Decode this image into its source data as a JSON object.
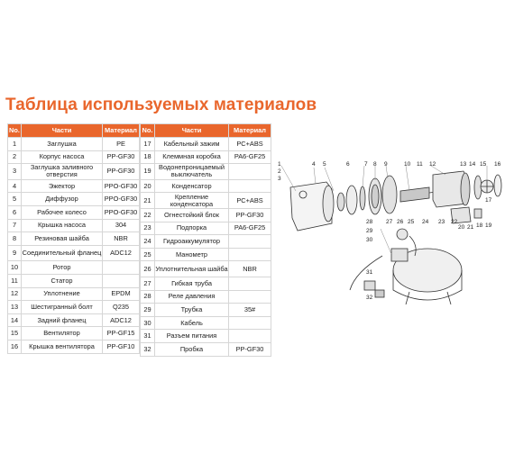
{
  "title": "Таблица используемых материалов",
  "headers": {
    "no": "No.",
    "part": "Части",
    "material": "Материал"
  },
  "left_rows": [
    {
      "no": "1",
      "part": "Заглушка",
      "material": "PE"
    },
    {
      "no": "2",
      "part": "Корпус насоса",
      "material": "PP-GF30"
    },
    {
      "no": "3",
      "part": "Заглушка заливного отверстия",
      "material": "PP-GF30"
    },
    {
      "no": "4",
      "part": "Эжектор",
      "material": "PPO-GF30"
    },
    {
      "no": "5",
      "part": "Диффузор",
      "material": "PPO-GF30"
    },
    {
      "no": "6",
      "part": "Рабочее колесо",
      "material": "PPO-GF30"
    },
    {
      "no": "7",
      "part": "Крышка насоса",
      "material": "304"
    },
    {
      "no": "8",
      "part": "Резиновая шайба",
      "material": "NBR"
    },
    {
      "no": "9",
      "part": "Соединительный фланец",
      "material": "ADC12"
    },
    {
      "no": "10",
      "part": "Ротор",
      "material": ""
    },
    {
      "no": "11",
      "part": "Статор",
      "material": ""
    },
    {
      "no": "12",
      "part": "Уплотнение",
      "material": "EPDM"
    },
    {
      "no": "13",
      "part": "Шестигранный болт",
      "material": "Q235"
    },
    {
      "no": "14",
      "part": "Задний фланец",
      "material": "ADC12"
    },
    {
      "no": "15",
      "part": "Вентилятор",
      "material": "PP-GF15"
    },
    {
      "no": "16",
      "part": "Крышка вентилятора",
      "material": "PP-GF10"
    }
  ],
  "right_rows": [
    {
      "no": "17",
      "part": "Кабельный зажим",
      "material": "PC+ABS"
    },
    {
      "no": "18",
      "part": "Клеммная коробка",
      "material": "PA6-GF25"
    },
    {
      "no": "19",
      "part": "Водонепроницаемый выключатель",
      "material": ""
    },
    {
      "no": "20",
      "part": "Конденсатор",
      "material": ""
    },
    {
      "no": "21",
      "part": "Крепление конденсатора",
      "material": "PC+ABS"
    },
    {
      "no": "22",
      "part": "Огнестойкий блок",
      "material": "PP-GF30"
    },
    {
      "no": "23",
      "part": "Подпорка",
      "material": "PA6-GF25"
    },
    {
      "no": "24",
      "part": "Гидроаккумулятор",
      "material": ""
    },
    {
      "no": "25",
      "part": "Манометр",
      "material": ""
    },
    {
      "no": "26",
      "part": "Уплотнительная шайба",
      "material": "NBR"
    },
    {
      "no": "27",
      "part": "Гибкая труба",
      "material": ""
    },
    {
      "no": "28",
      "part": "Реле давления",
      "material": ""
    },
    {
      "no": "29",
      "part": "Трубка",
      "material": "35#"
    },
    {
      "no": "30",
      "part": "Кабель",
      "material": ""
    },
    {
      "no": "31",
      "part": "Разъем питания",
      "material": ""
    },
    {
      "no": "32",
      "part": "Пробка",
      "material": "PP-GF30"
    }
  ],
  "diagram_labels": [
    "1",
    "2",
    "3",
    "4",
    "5",
    "6",
    "7",
    "8",
    "9",
    "10",
    "11",
    "12",
    "13",
    "14",
    "15",
    "16",
    "17",
    "18",
    "19",
    "20",
    "21",
    "22",
    "23",
    "24",
    "25",
    "26",
    "27",
    "28",
    "29",
    "30",
    "31",
    "32"
  ]
}
